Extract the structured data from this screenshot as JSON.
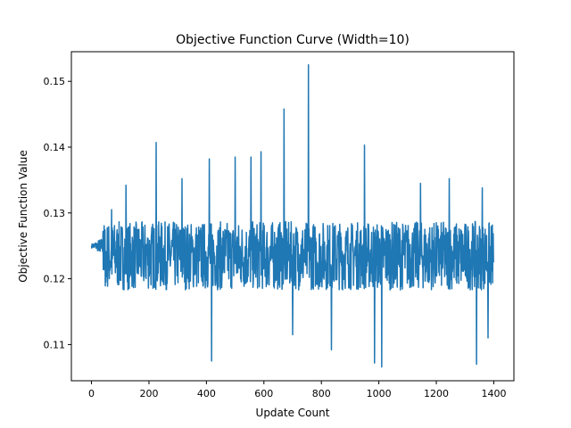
{
  "chart_data": {
    "type": "line",
    "title": "Objective Function Curve (Width=10)",
    "xlabel": "Update Count",
    "ylabel": "Objective Function Value",
    "xlim": [
      -70,
      1470
    ],
    "ylim": [
      0.1045,
      0.1545
    ],
    "xticks": [
      0,
      200,
      400,
      600,
      800,
      1000,
      1200,
      1400
    ],
    "yticks": [
      0.11,
      0.12,
      0.13,
      0.14,
      0.15
    ],
    "ytick_labels": [
      "0.11",
      "0.12",
      "0.13",
      "0.14",
      "0.15"
    ],
    "grid": false,
    "legend": "none",
    "series": [
      {
        "color": "#1f77b4",
        "x_start": 0,
        "x_end": 1400,
        "baseline": 0.1235,
        "noise_amplitude": 0.0052,
        "features": [
          {
            "x": 0,
            "y": 0.125
          },
          {
            "x": 5,
            "y": 0.1252
          },
          {
            "x": 10,
            "y": 0.1248
          },
          {
            "x": 20,
            "y": 0.1253
          },
          {
            "x": 30,
            "y": 0.1242
          },
          {
            "x": 40,
            "y": 0.1272
          },
          {
            "x": 50,
            "y": 0.1195
          },
          {
            "x": 70,
            "y": 0.1305
          },
          {
            "x": 120,
            "y": 0.1342
          },
          {
            "x": 225,
            "y": 0.1407
          },
          {
            "x": 315,
            "y": 0.1352
          },
          {
            "x": 410,
            "y": 0.1382
          },
          {
            "x": 418,
            "y": 0.1075
          },
          {
            "x": 500,
            "y": 0.1385
          },
          {
            "x": 555,
            "y": 0.1385
          },
          {
            "x": 590,
            "y": 0.1393
          },
          {
            "x": 670,
            "y": 0.1458
          },
          {
            "x": 700,
            "y": 0.1115
          },
          {
            "x": 755,
            "y": 0.1525
          },
          {
            "x": 835,
            "y": 0.1092
          },
          {
            "x": 950,
            "y": 0.1403
          },
          {
            "x": 985,
            "y": 0.1072
          },
          {
            "x": 1010,
            "y": 0.1066
          },
          {
            "x": 1145,
            "y": 0.1345
          },
          {
            "x": 1245,
            "y": 0.1352
          },
          {
            "x": 1340,
            "y": 0.107
          },
          {
            "x": 1360,
            "y": 0.1338
          },
          {
            "x": 1380,
            "y": 0.111
          },
          {
            "x": 1400,
            "y": 0.1225
          }
        ]
      }
    ]
  }
}
